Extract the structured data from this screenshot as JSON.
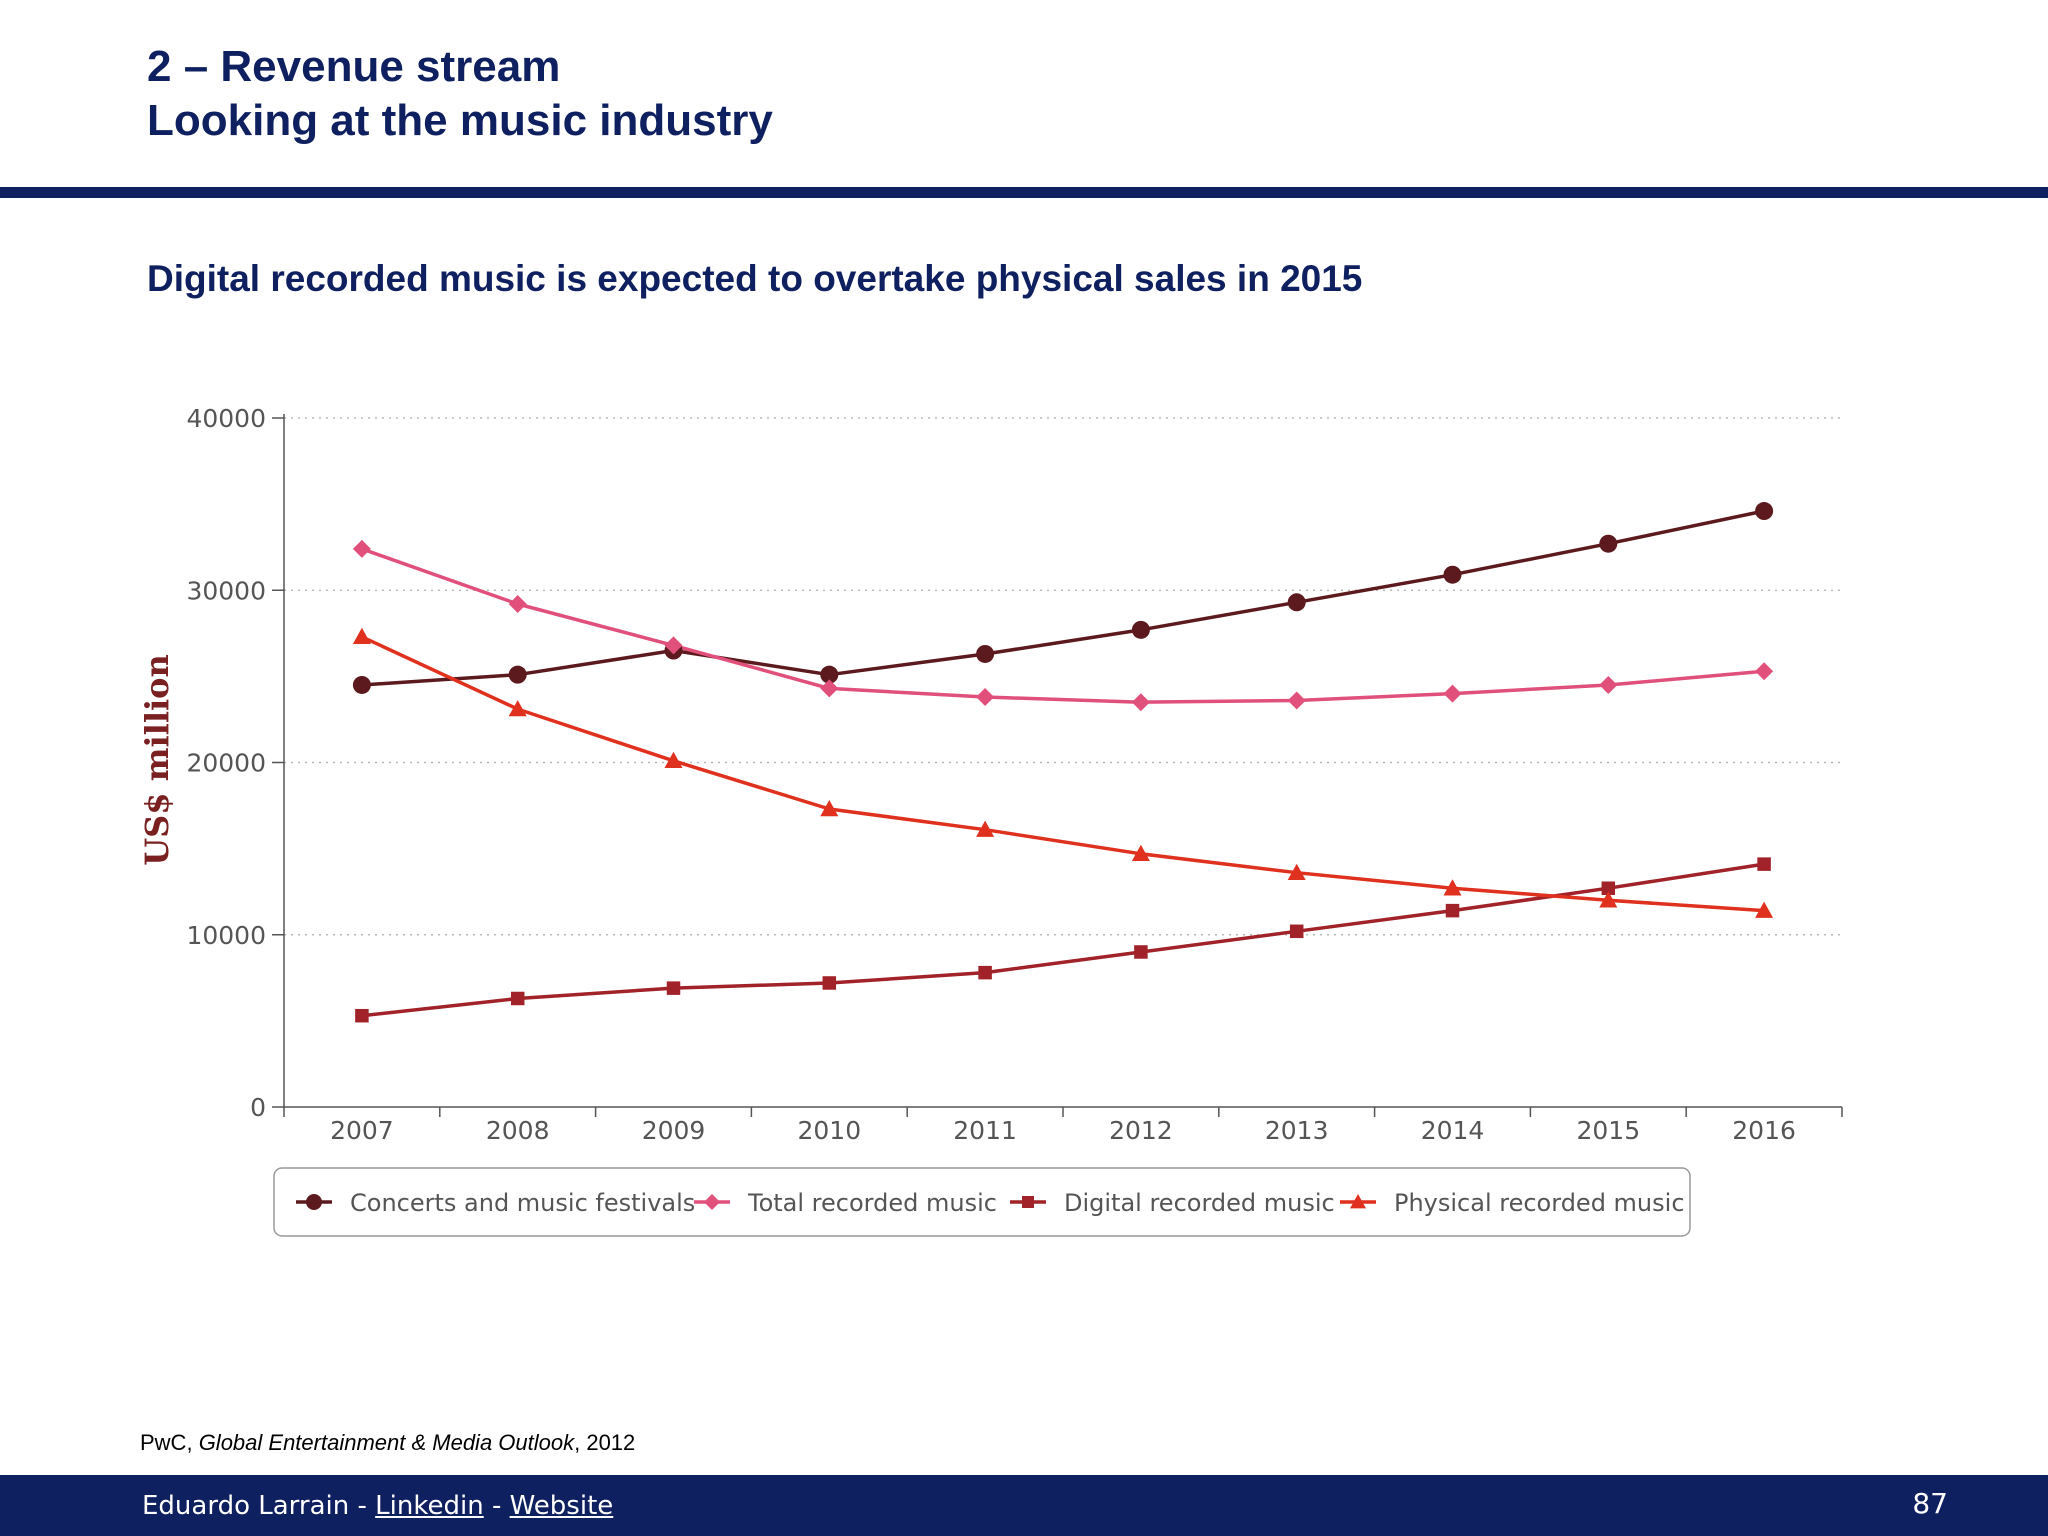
{
  "slide": {
    "title_line1": "2 – Revenue stream",
    "title_line2": "Looking at the music industry",
    "subtitle": "Digital recorded music is expected to overtake physical sales in 2015"
  },
  "source": {
    "publisher": "PwC, ",
    "title": "Global Entertainment & Media Outlook",
    "year": ", 2012"
  },
  "footer": {
    "author": "Eduardo Larrain",
    "separator1": " - ",
    "link1": "Linkedin",
    "separator2": " - ",
    "link2": "Website",
    "page_number": "87"
  },
  "colors": {
    "navy": "#0f2060",
    "ylabel": "#7a2020"
  },
  "chart_data": {
    "type": "line",
    "title": "",
    "xlabel": "",
    "ylabel": "US$ million",
    "categories": [
      "2007",
      "2008",
      "2009",
      "2010",
      "2011",
      "2012",
      "2013",
      "2014",
      "2015",
      "2016"
    ],
    "ylim": [
      0,
      40000
    ],
    "yticks": [
      0,
      10000,
      20000,
      30000,
      40000
    ],
    "grid": "horizontal dotted",
    "legend_position": "bottom",
    "series": [
      {
        "name": "Concerts and music festivals",
        "marker": "circle",
        "color": "#5c1a1e",
        "values": [
          24500,
          25100,
          26500,
          25100,
          26300,
          27700,
          29300,
          30900,
          32700,
          34600
        ]
      },
      {
        "name": "Total recorded music",
        "marker": "diamond",
        "color": "#e0507a",
        "values": [
          32400,
          29200,
          26800,
          24300,
          23800,
          23500,
          23600,
          24000,
          24500,
          25300
        ]
      },
      {
        "name": "Digital recorded music",
        "marker": "square",
        "color": "#a12228",
        "values": [
          5300,
          6300,
          6900,
          7200,
          7800,
          9000,
          10200,
          11400,
          12700,
          14100
        ]
      },
      {
        "name": "Physical recorded music",
        "marker": "triangle",
        "color": "#e0301e",
        "values": [
          27300,
          23100,
          20100,
          17300,
          16100,
          14700,
          13600,
          12700,
          12000,
          11400
        ]
      }
    ]
  }
}
